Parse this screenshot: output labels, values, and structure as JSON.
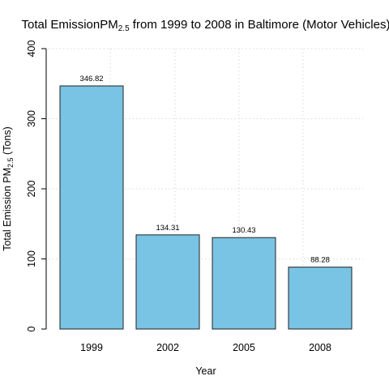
{
  "chart_data": {
    "type": "bar",
    "title_main": "Total Emission",
    "title_pm": "PM",
    "title_sub": "2.5",
    "title_rest": " from 1999 to 2008 in Baltimore (Motor Vehicles)",
    "xlabel": "Year",
    "ylabel_main": "Total Emission ",
    "ylabel_pm": "PM",
    "ylabel_sub": "2.5",
    "ylabel_rest": " (Tons)",
    "categories": [
      "1999",
      "2002",
      "2005",
      "2008"
    ],
    "values": [
      346.82,
      134.31,
      130.43,
      88.28
    ],
    "value_labels": [
      "346.82",
      "134.31",
      "130.43",
      "88.28"
    ],
    "ylim": [
      0,
      400
    ],
    "yticks": [
      0,
      100,
      200,
      300,
      400
    ],
    "ytick_labels": [
      "0",
      "100",
      "200",
      "300",
      "400"
    ],
    "grid": true,
    "bar_color": "#79c3e4",
    "bar_edge_color": "#222222",
    "grid_color": "#d8d8d8"
  }
}
